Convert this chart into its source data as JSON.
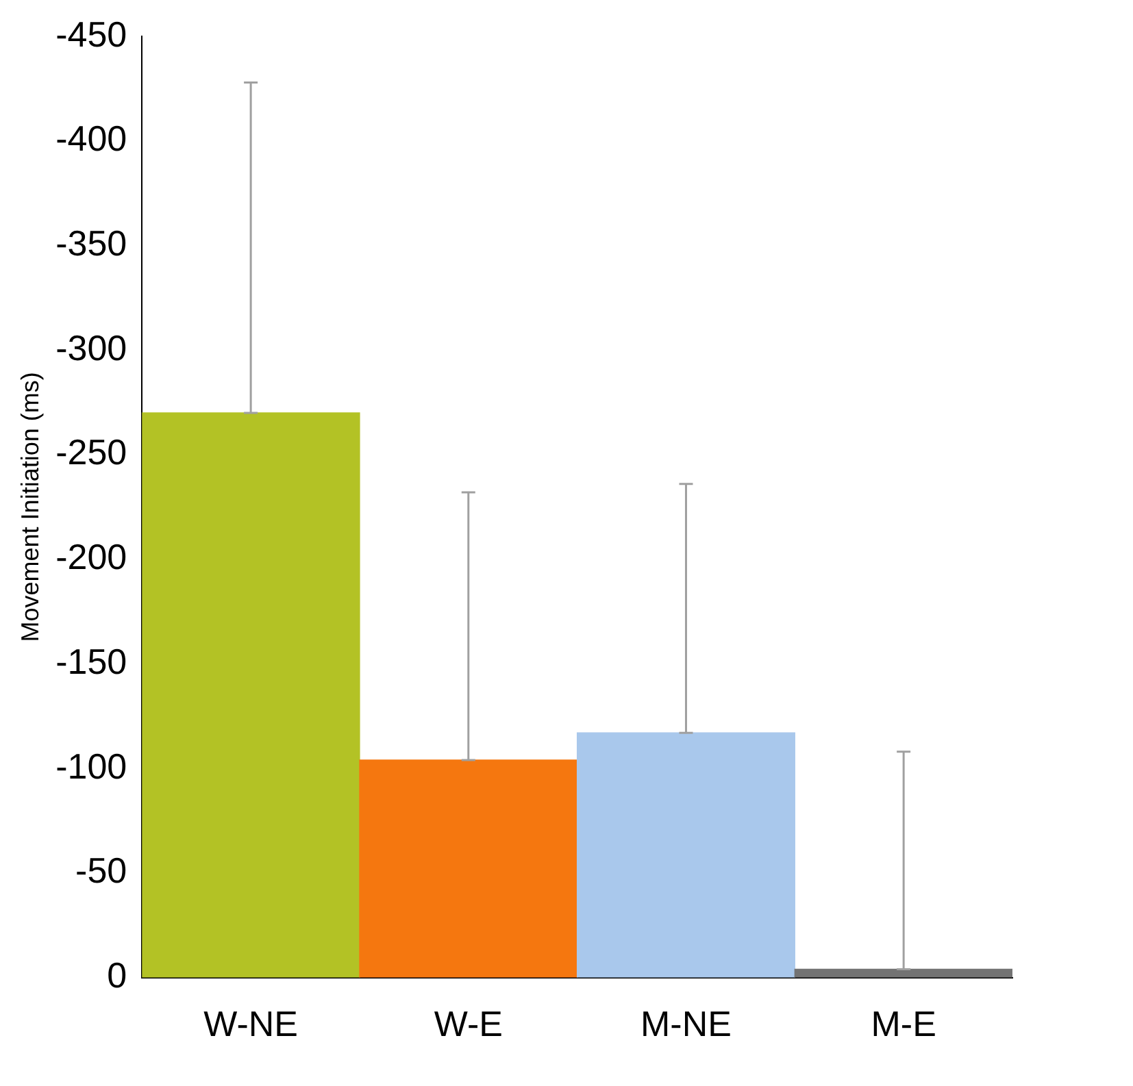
{
  "chart_data": {
    "type": "bar",
    "ylabel": "Movement Initiation (ms)",
    "categories": [
      "W-NE",
      "W-E",
      "M-NE",
      "M-E"
    ],
    "values": [
      -270,
      -104,
      -117,
      -4
    ],
    "colors": [
      "#b3c225",
      "#f5770f",
      "#a9c8ec",
      "#737373"
    ],
    "errors": [
      [
        -428,
        -270
      ],
      [
        -232,
        -104
      ],
      [
        -236,
        -117
      ],
      [
        -108,
        -4
      ]
    ],
    "ylim": [
      0,
      -450
    ],
    "yticks": [
      0,
      -50,
      -100,
      -150,
      -200,
      -250,
      -300,
      -350,
      -400,
      -450
    ],
    "grid": false,
    "legend": false
  }
}
